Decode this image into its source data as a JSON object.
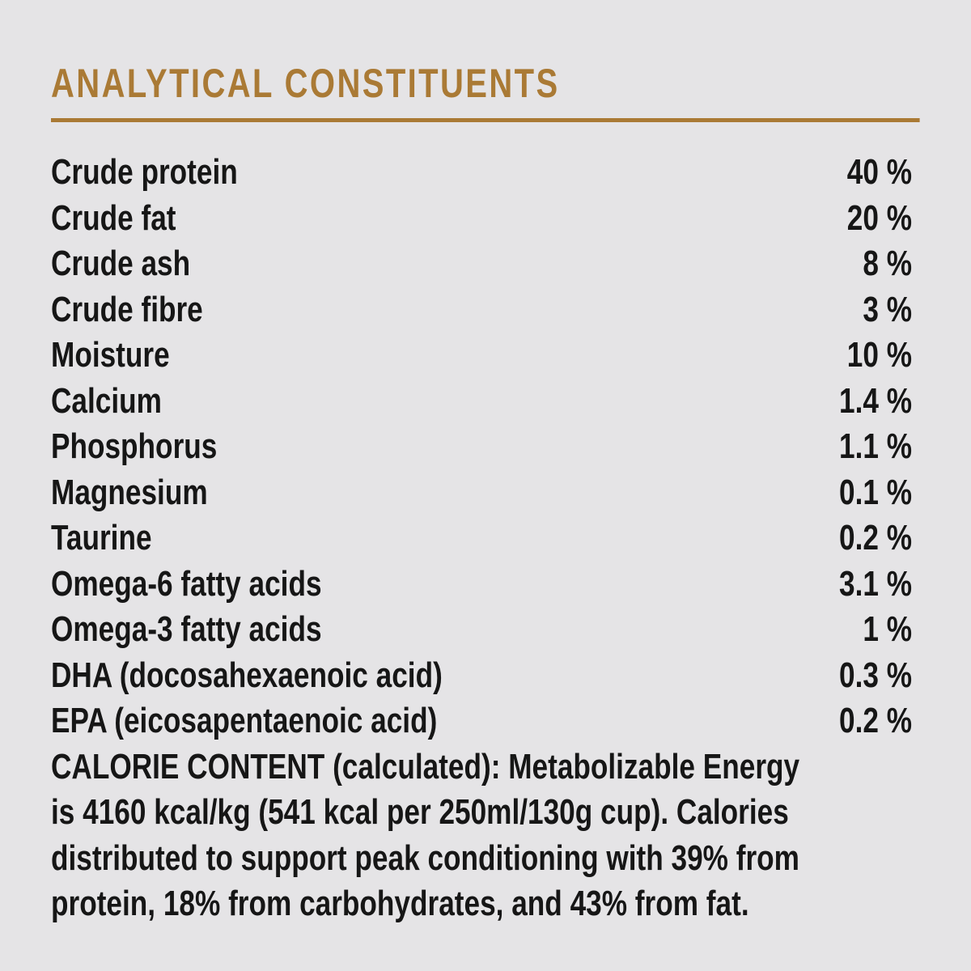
{
  "page": {
    "background_color": "#e5e4e6",
    "text_color": "#161616",
    "accent_color": "#aa7a35"
  },
  "section": {
    "title": "ANALYTICAL CONSTITUENTS",
    "constituents": [
      {
        "label": "Crude protein",
        "value": "40 %"
      },
      {
        "label": "Crude fat",
        "value": "20 %"
      },
      {
        "label": "Crude ash",
        "value": "8 %"
      },
      {
        "label": "Crude fibre",
        "value": "3 %"
      },
      {
        "label": "Moisture",
        "value": "10 %"
      },
      {
        "label": "Calcium",
        "value": "1.4 %"
      },
      {
        "label": "Phosphorus",
        "value": "1.1 %"
      },
      {
        "label": "Magnesium",
        "value": "0.1 %"
      },
      {
        "label": "Taurine",
        "value": "0.2 %"
      },
      {
        "label": "Omega-6 fatty acids",
        "value": "3.1 %"
      },
      {
        "label": "Omega-3 fatty acids",
        "value": "1 %"
      },
      {
        "label": "DHA (docosahexaenoic acid)",
        "value": "0.3 %"
      },
      {
        "label": "EPA (eicosapentaenoic acid)",
        "value": "0.2 %"
      }
    ],
    "calorie_content": {
      "lines": [
        "CALORIE CONTENT (calculated): Metabolizable Energy",
        "is 4160 kcal/kg (541 kcal per 250ml/130g cup). Calories",
        "distributed to support peak conditioning with 39% from",
        "protein, 18% from carbohydrates, and 43% from fat."
      ]
    }
  }
}
